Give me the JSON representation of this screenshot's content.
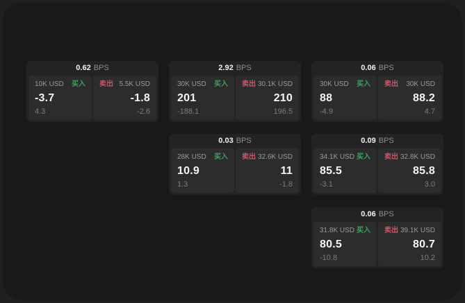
{
  "labels": {
    "buy": "买入",
    "sell": "卖出",
    "bps": "BPS"
  },
  "colors": {
    "outer_background": "#1f1f1f",
    "panel_background": "#191919",
    "card_background": "#232323",
    "tile_background": "#2c2c2c",
    "buy_green": "#3fa25f",
    "sell_red": "#c75868",
    "primary_text": "#f5f5f5",
    "secondary_text": "#9b9b9b",
    "muted_text": "#7d7d7d"
  },
  "cards": [
    {
      "bps": "0.62",
      "buy": {
        "amount": "10K USD",
        "value": "-3.7",
        "delta": "4.3"
      },
      "sell": {
        "amount": "5.5K USD",
        "value": "-1.8",
        "delta": "-2.6"
      }
    },
    {
      "bps": "2.92",
      "buy": {
        "amount": "30K USD",
        "value": "201",
        "delta": "-188.1"
      },
      "sell": {
        "amount": "30.1K USD",
        "value": "210",
        "delta": "196.5"
      }
    },
    {
      "bps": "0.06",
      "buy": {
        "amount": "30K USD",
        "value": "88",
        "delta": "-4.9"
      },
      "sell": {
        "amount": "30K USD",
        "value": "88.2",
        "delta": "4.7"
      }
    },
    {
      "bps": "0.03",
      "buy": {
        "amount": "28K USD",
        "value": "10.9",
        "delta": "1.3"
      },
      "sell": {
        "amount": "32.6K USD",
        "value": "11",
        "delta": "-1.8"
      }
    },
    {
      "bps": "0.09",
      "buy": {
        "amount": "34.1K USD",
        "value": "85.5",
        "delta": "-3.1"
      },
      "sell": {
        "amount": "32.8K USD",
        "value": "85.8",
        "delta": "3.0"
      }
    },
    {
      "bps": "0.06",
      "buy": {
        "amount": "31.8K USD",
        "value": "80.5",
        "delta": "-10.8"
      },
      "sell": {
        "amount": "39.1K USD",
        "value": "80.7",
        "delta": "10.2"
      }
    }
  ]
}
